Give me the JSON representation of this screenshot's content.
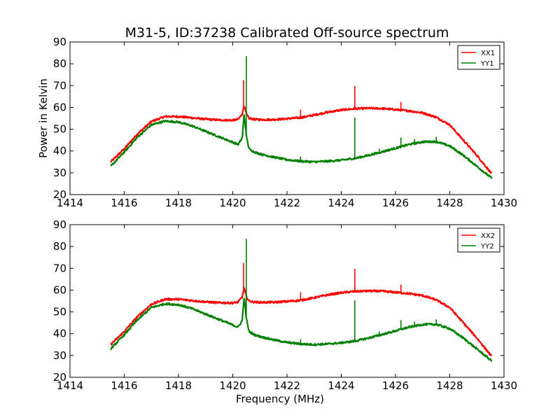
{
  "figure": {
    "title": "M31-5, ID:37238 Calibrated Off-source spectrum"
  },
  "chart_data": [
    {
      "type": "line",
      "panel": "top",
      "title": "",
      "xlabel": "",
      "ylabel": "Power in Kelvin",
      "xlim": [
        1414,
        1430
      ],
      "ylim": [
        20,
        90
      ],
      "xticks": [
        "1414",
        "1416",
        "1418",
        "1420",
        "1422",
        "1424",
        "1426",
        "1428",
        "1430"
      ],
      "yticks": [
        "20",
        "30",
        "40",
        "50",
        "60",
        "70",
        "80",
        "90"
      ],
      "grid": false,
      "legend": "top-right",
      "series": [
        {
          "name": "XX1",
          "color": "#ff0000",
          "x": [
            1415.5,
            1416.0,
            1416.5,
            1417.0,
            1417.5,
            1418.0,
            1418.5,
            1419.0,
            1419.5,
            1420.0,
            1420.2,
            1420.35,
            1420.42,
            1420.5,
            1420.6,
            1420.8,
            1421.0,
            1421.5,
            1422.0,
            1422.5,
            1423.0,
            1423.5,
            1424.0,
            1424.5,
            1425.0,
            1425.5,
            1426.0,
            1426.5,
            1427.0,
            1427.5,
            1428.0,
            1428.5,
            1429.0,
            1429.55
          ],
          "values": [
            35,
            41,
            48,
            53.5,
            55.8,
            55.8,
            55.2,
            54.6,
            54.2,
            54.1,
            54.5,
            57,
            61,
            57,
            55,
            54.5,
            54.4,
            54.4,
            54.8,
            55.3,
            56.5,
            57.8,
            58.8,
            59.4,
            59.6,
            59.5,
            59.0,
            58.4,
            57.5,
            55.5,
            52,
            45,
            38,
            29.5
          ],
          "spikes": [
            {
              "x": 1420.4,
              "peak": 72.5
            },
            {
              "x": 1422.5,
              "peak": 59
            },
            {
              "x": 1424.5,
              "peak": 69.8
            },
            {
              "x": 1426.2,
              "peak": 62.5
            }
          ]
        },
        {
          "name": "YY1",
          "color": "#008000",
          "x": [
            1415.5,
            1416.0,
            1416.5,
            1417.0,
            1417.5,
            1418.0,
            1418.5,
            1419.0,
            1419.5,
            1420.0,
            1420.2,
            1420.35,
            1420.42,
            1420.5,
            1420.6,
            1420.8,
            1421.0,
            1421.5,
            1422.0,
            1422.5,
            1423.0,
            1423.5,
            1424.0,
            1424.5,
            1425.0,
            1425.5,
            1426.0,
            1426.5,
            1427.0,
            1427.5,
            1428.0,
            1428.5,
            1429.0,
            1429.55
          ],
          "values": [
            33,
            39.5,
            46.5,
            52,
            53.7,
            53.3,
            51.5,
            49,
            46.5,
            44,
            43,
            46,
            57,
            47,
            41,
            39.5,
            38.7,
            37.2,
            36,
            35.3,
            35,
            35.3,
            35.8,
            36.6,
            38,
            39.6,
            41.3,
            43,
            44.2,
            44.3,
            42.3,
            38,
            33,
            27.5
          ],
          "spikes": [
            {
              "x": 1420.5,
              "peak": 83.5
            },
            {
              "x": 1422.5,
              "peak": 37.5
            },
            {
              "x": 1424.5,
              "peak": 55.3
            },
            {
              "x": 1425.4,
              "peak": 41
            },
            {
              "x": 1426.2,
              "peak": 46.2
            },
            {
              "x": 1426.7,
              "peak": 45.5
            },
            {
              "x": 1427.5,
              "peak": 46.5
            }
          ]
        }
      ]
    },
    {
      "type": "line",
      "panel": "bottom",
      "title": "",
      "xlabel": "Frequency (MHz)",
      "ylabel": "",
      "xlim": [
        1414,
        1430
      ],
      "ylim": [
        20,
        90
      ],
      "xticks": [
        "1414",
        "1416",
        "1418",
        "1420",
        "1422",
        "1424",
        "1426",
        "1428",
        "1430"
      ],
      "yticks": [
        "20",
        "30",
        "40",
        "50",
        "60",
        "70",
        "80",
        "90"
      ],
      "grid": false,
      "legend": "top-right",
      "series": [
        {
          "name": "XX2",
          "color": "#ff0000",
          "x": [
            1415.5,
            1416.0,
            1416.5,
            1417.0,
            1417.5,
            1418.0,
            1418.5,
            1419.0,
            1419.5,
            1420.0,
            1420.2,
            1420.35,
            1420.42,
            1420.5,
            1420.6,
            1420.8,
            1421.0,
            1421.5,
            1422.0,
            1422.5,
            1423.0,
            1423.5,
            1424.0,
            1424.5,
            1425.0,
            1425.5,
            1426.0,
            1426.5,
            1427.0,
            1427.5,
            1428.0,
            1428.5,
            1429.0,
            1429.55
          ],
          "values": [
            35,
            41,
            48,
            53.5,
            55.8,
            55.8,
            55.2,
            54.6,
            54.2,
            54.1,
            54.5,
            57,
            61,
            57,
            55,
            54.5,
            54.4,
            54.4,
            54.8,
            55.3,
            56.5,
            57.8,
            58.8,
            59.4,
            59.6,
            59.5,
            59.0,
            58.4,
            57.5,
            55.5,
            52,
            45,
            38,
            29.5
          ],
          "spikes": [
            {
              "x": 1420.4,
              "peak": 72.5
            },
            {
              "x": 1422.5,
              "peak": 59
            },
            {
              "x": 1424.5,
              "peak": 69.8
            },
            {
              "x": 1426.2,
              "peak": 62.5
            }
          ]
        },
        {
          "name": "YY2",
          "color": "#008000",
          "x": [
            1415.5,
            1416.0,
            1416.5,
            1417.0,
            1417.5,
            1418.0,
            1418.5,
            1419.0,
            1419.5,
            1420.0,
            1420.2,
            1420.35,
            1420.42,
            1420.5,
            1420.6,
            1420.8,
            1421.0,
            1421.5,
            1422.0,
            1422.5,
            1423.0,
            1423.5,
            1424.0,
            1424.5,
            1425.0,
            1425.5,
            1426.0,
            1426.5,
            1427.0,
            1427.5,
            1428.0,
            1428.5,
            1429.0,
            1429.55
          ],
          "values": [
            33,
            39.5,
            46.5,
            52,
            53.7,
            53.3,
            51.5,
            49,
            46.5,
            44,
            43,
            46,
            57,
            47,
            41,
            39.5,
            38.7,
            37.2,
            36,
            35.3,
            35,
            35.3,
            35.8,
            36.6,
            38,
            39.6,
            41.3,
            43,
            44.2,
            44.3,
            42.3,
            38,
            33,
            27.5
          ],
          "spikes": [
            {
              "x": 1420.5,
              "peak": 83.5
            },
            {
              "x": 1422.5,
              "peak": 37.5
            },
            {
              "x": 1424.5,
              "peak": 55.3
            },
            {
              "x": 1425.4,
              "peak": 41
            },
            {
              "x": 1426.2,
              "peak": 46.2
            },
            {
              "x": 1426.7,
              "peak": 45.5
            },
            {
              "x": 1427.5,
              "peak": 46.5
            }
          ]
        }
      ]
    }
  ]
}
